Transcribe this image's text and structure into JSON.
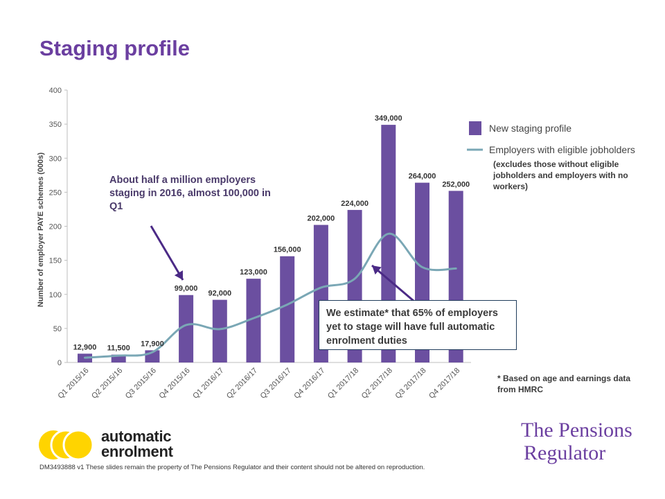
{
  "page": {
    "title": "Staging profile"
  },
  "chart_data": {
    "type": "bar",
    "categories": [
      "Q1 2015/16",
      "Q2 2015/16",
      "Q3 2015/16",
      "Q4 2015/16",
      "Q1 2016/17",
      "Q2 2016/17",
      "Q3 2016/17",
      "Q4 2016/17",
      "Q1 2017/18",
      "Q2 2017/18",
      "Q3 2017/18",
      "Q4 2017/18"
    ],
    "series": [
      {
        "name": "New staging profile",
        "kind": "bar",
        "color": "#6b4fa0",
        "values": [
          12.9,
          11.5,
          17.9,
          99,
          92,
          123,
          156,
          202,
          224,
          349,
          264,
          252
        ],
        "data_labels": [
          "12,900",
          "11,500",
          "17,900",
          "99,000",
          "92,000",
          "123,000",
          "156,000",
          "202,000",
          "224,000",
          "349,000",
          "264,000",
          "252,000"
        ]
      },
      {
        "name": "Employers with eligible jobholders",
        "kind": "line",
        "color": "#7aa7b5",
        "values": [
          7,
          10,
          15,
          55,
          49,
          65,
          85,
          110,
          123,
          189,
          140,
          138
        ]
      }
    ],
    "ylabel": "Number of employer PAYE schemes (000s)",
    "xlabel": "",
    "ylim": [
      0,
      400
    ],
    "yticks": [
      0,
      50,
      100,
      150,
      200,
      250,
      300,
      350,
      400
    ],
    "grid": false,
    "legend_position": "right"
  },
  "annotations": {
    "callout_half_million": "About half a million employers staging in 2016, almost 100,000 in Q1",
    "callout_estimate": "We estimate* that 65% of employers yet to stage will have full automatic enrolment duties",
    "legend_note": "(excludes those without eligible jobholders and employers with no workers)",
    "footnote": "* Based on age and earnings data from HMRC"
  },
  "branding": {
    "ae_logo_line1": "automatic",
    "ae_logo_line2": "enrolment",
    "regulator_line1": "The Pensions",
    "regulator_line2": "Regulator",
    "ae_yellow": "#ffd400",
    "regulator_purple": "#6b3fa0"
  },
  "footer": {
    "disclaimer": "DM3493888 v1 These slides remain the property of The Pensions Regulator and their content should not be altered on reproduction."
  }
}
